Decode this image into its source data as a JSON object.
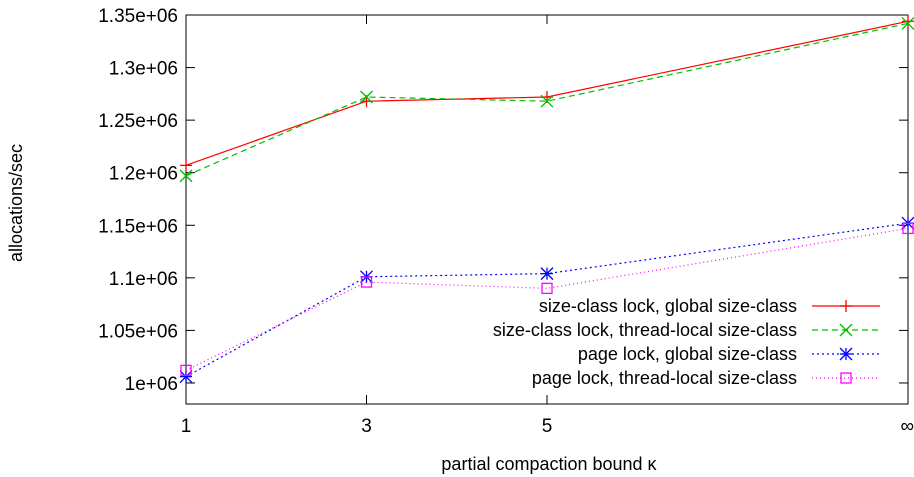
{
  "chart_data": {
    "type": "line",
    "xlabel": "partial compaction bound κ",
    "ylabel": "allocations/sec",
    "categories": [
      "1",
      "3",
      "5",
      "∞"
    ],
    "x_positions": [
      1,
      3,
      5,
      9
    ],
    "xlim": [
      1,
      9
    ],
    "ylim": [
      980000,
      1350000
    ],
    "yticks": [
      {
        "value": 1000000,
        "label": "1e+06"
      },
      {
        "value": 1050000,
        "label": "1.05e+06"
      },
      {
        "value": 1100000,
        "label": "1.1e+06"
      },
      {
        "value": 1150000,
        "label": "1.15e+06"
      },
      {
        "value": 1200000,
        "label": "1.2e+06"
      },
      {
        "value": 1250000,
        "label": "1.25e+06"
      },
      {
        "value": 1300000,
        "label": "1.3e+06"
      },
      {
        "value": 1350000,
        "label": "1.35e+06"
      }
    ],
    "grid": false,
    "legend_position": "bottom-right",
    "series": [
      {
        "name": "size-class lock, global size-class",
        "values": [
          1207000,
          1268000,
          1272000,
          1344000
        ],
        "color": "#ff0000",
        "dash": "",
        "marker": "plus"
      },
      {
        "name": "size-class lock, thread-local size-class",
        "values": [
          1197000,
          1272000,
          1268000,
          1342000
        ],
        "color": "#00c000",
        "dash": "6,4",
        "marker": "cross"
      },
      {
        "name": "page lock, global size-class",
        "values": [
          1006000,
          1101000,
          1104000,
          1152000
        ],
        "color": "#0000ff",
        "dash": "2,3",
        "marker": "star"
      },
      {
        "name": "page lock, thread-local size-class",
        "values": [
          1012000,
          1096000,
          1090000,
          1147000
        ],
        "color": "#ff00ff",
        "dash": "1,3",
        "marker": "square"
      }
    ]
  }
}
